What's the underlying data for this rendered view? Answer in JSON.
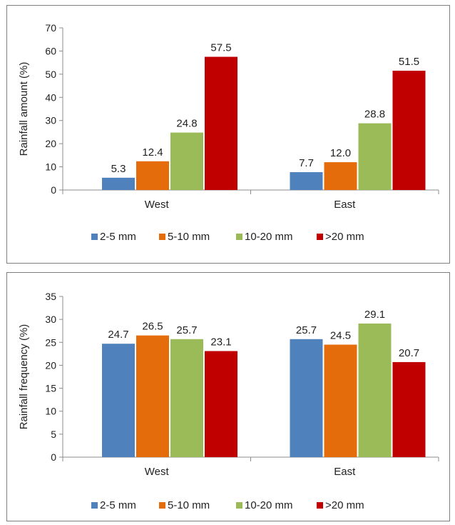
{
  "colors": {
    "2-5 mm": "#4f81bd",
    "5-10 mm": "#e46c0a",
    "10-20 mm": "#9bbb59",
    ">20 mm": "#c00000",
    "axis": "#8c8c8c",
    "text": "#222222"
  },
  "chart_data": [
    {
      "type": "bar",
      "title": "",
      "xlabel": "",
      "ylabel": "Rainfall amount (%)",
      "ylim": [
        0,
        70
      ],
      "yticks": [
        0,
        10,
        20,
        30,
        40,
        50,
        60,
        70
      ],
      "categories": [
        "West",
        "East"
      ],
      "series": [
        {
          "name": "2-5 mm",
          "values": [
            5.3,
            7.7
          ]
        },
        {
          "name": "5-10 mm",
          "values": [
            12.4,
            12.0
          ]
        },
        {
          "name": "10-20 mm",
          "values": [
            24.8,
            28.8
          ]
        },
        {
          "name": ">20 mm",
          "values": [
            57.5,
            51.5
          ]
        }
      ],
      "data_labels": [
        [
          "5.3",
          "7.7"
        ],
        [
          "12.4",
          "12.0"
        ],
        [
          "24.8",
          "28.8"
        ],
        [
          "57.5",
          "51.5"
        ]
      ],
      "legend_position": "bottom",
      "grid": false
    },
    {
      "type": "bar",
      "title": "",
      "xlabel": "",
      "ylabel": "Rainfall frequency (%)",
      "ylim": [
        0,
        35
      ],
      "yticks": [
        0,
        5,
        10,
        15,
        20,
        25,
        30,
        35
      ],
      "categories": [
        "West",
        "East"
      ],
      "series": [
        {
          "name": "2-5 mm",
          "values": [
            24.7,
            25.7
          ]
        },
        {
          "name": "5-10 mm",
          "values": [
            26.5,
            24.5
          ]
        },
        {
          "name": "10-20 mm",
          "values": [
            25.7,
            29.1
          ]
        },
        {
          "name": ">20 mm",
          "values": [
            23.1,
            20.7
          ]
        }
      ],
      "data_labels": [
        [
          "24.7",
          "25.7"
        ],
        [
          "26.5",
          "24.5"
        ],
        [
          "25.7",
          "29.1"
        ],
        [
          "23.1",
          "20.7"
        ]
      ],
      "legend_position": "bottom",
      "grid": false
    }
  ]
}
